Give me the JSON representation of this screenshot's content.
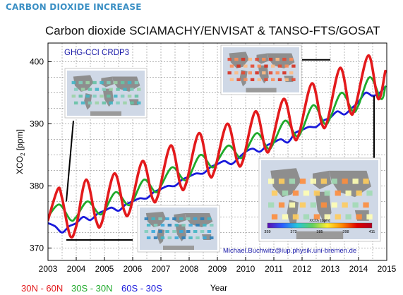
{
  "page": {
    "header": "CARBON DIOXIDE INCREASE"
  },
  "chart_data": {
    "type": "line",
    "title": "Carbon dioxide SCIAMACHY/ENVISAT & TANSO-FTS/GOSAT",
    "dataset_label": "GHG-CCI CRDP3",
    "credit": "Michael.Buchwitz@iup.physik.uni-bremen.de",
    "xlabel": "Year",
    "ylabel": "XCO₂ [ppm]",
    "ylabel_base": "XCO",
    "ylabel_sub": "2",
    "ylabel_unit": " [ppm]",
    "xlim": [
      2003,
      2015
    ],
    "ylim": [
      368,
      403
    ],
    "xticks": [
      2003,
      2004,
      2005,
      2006,
      2007,
      2008,
      2009,
      2010,
      2011,
      2012,
      2013,
      2014,
      2015
    ],
    "yticks": [
      370,
      380,
      390,
      400
    ],
    "grid": true,
    "legend_placement": "bottom",
    "series": [
      {
        "name": "30N - 60N",
        "color": "#e31a1c",
        "x": [
          2003.0,
          2003.35,
          2003.5,
          2003.78,
          2004.0,
          2004.35,
          2004.7,
          2004.9,
          2005.35,
          2005.7,
          2005.9,
          2006.35,
          2006.7,
          2006.9,
          2007.35,
          2007.7,
          2007.9,
          2008.35,
          2008.7,
          2008.9,
          2009.35,
          2009.7,
          2009.9,
          2010.35,
          2010.7,
          2010.9,
          2011.35,
          2011.7,
          2011.9,
          2012.35,
          2012.7,
          2012.9,
          2013.35,
          2013.7,
          2013.9,
          2014.35,
          2014.7,
          2014.95
        ],
        "y": [
          374.5,
          379.5,
          378.0,
          372.0,
          373.5,
          381.0,
          374.5,
          374.0,
          382.0,
          376.0,
          376.0,
          384.0,
          378.0,
          378.5,
          386.5,
          380.0,
          380.5,
          388.5,
          382.0,
          382.5,
          390.0,
          384.0,
          384.0,
          392.0,
          386.0,
          386.5,
          394.0,
          388.0,
          388.5,
          396.5,
          390.0,
          390.5,
          399.0,
          392.0,
          393.0,
          401.0,
          394.0,
          398.5
        ]
      },
      {
        "name": "30S - 30N",
        "color": "#1faa2b",
        "x": [
          2003.0,
          2003.4,
          2003.8,
          2004.0,
          2004.4,
          2004.8,
          2005.0,
          2005.4,
          2005.8,
          2006.0,
          2006.4,
          2006.8,
          2007.0,
          2007.4,
          2007.8,
          2008.0,
          2008.4,
          2008.8,
          2009.0,
          2009.4,
          2009.8,
          2010.0,
          2010.4,
          2010.8,
          2011.0,
          2011.4,
          2011.8,
          2012.0,
          2012.4,
          2012.8,
          2013.0,
          2013.4,
          2013.8,
          2014.0,
          2014.4,
          2014.8,
          2014.95
        ],
        "y": [
          375.0,
          377.0,
          374.5,
          375.0,
          377.5,
          375.5,
          376.0,
          379.0,
          377.0,
          377.5,
          381.0,
          379.0,
          380.0,
          383.0,
          381.0,
          381.5,
          385.0,
          383.0,
          384.0,
          386.5,
          384.5,
          385.5,
          388.5,
          386.0,
          387.0,
          390.5,
          388.0,
          389.0,
          393.0,
          390.0,
          391.0,
          395.0,
          392.0,
          393.0,
          397.5,
          394.0,
          396.0
        ]
      },
      {
        "name": "60S - 30S",
        "color": "#1a1adb",
        "x": [
          2003.0,
          2003.25,
          2003.5,
          2003.75,
          2004.0,
          2004.25,
          2004.5,
          2004.75,
          2005.0,
          2005.25,
          2005.5,
          2005.75,
          2006.0,
          2006.25,
          2006.5,
          2006.75,
          2007.0,
          2007.25,
          2007.5,
          2007.75,
          2008.0,
          2008.25,
          2008.5,
          2008.75,
          2009.0,
          2009.25,
          2009.5,
          2009.75,
          2010.0,
          2010.25,
          2010.5,
          2010.75,
          2011.0,
          2011.25,
          2011.5,
          2011.75,
          2012.0,
          2012.25,
          2012.5,
          2012.75,
          2013.0,
          2013.25,
          2013.5,
          2013.75,
          2014.0,
          2014.25,
          2014.5,
          2014.75,
          2014.95
        ],
        "y": [
          374.0,
          373.5,
          372.5,
          373.5,
          374.0,
          375.0,
          374.5,
          375.5,
          376.0,
          376.5,
          376.0,
          377.0,
          377.5,
          378.0,
          378.0,
          379.0,
          379.5,
          380.0,
          380.0,
          381.0,
          381.5,
          382.0,
          382.0,
          383.0,
          383.5,
          384.0,
          383.5,
          384.5,
          385.5,
          386.0,
          385.5,
          386.5,
          387.0,
          387.5,
          387.0,
          388.5,
          389.0,
          389.5,
          389.5,
          390.5,
          391.0,
          392.0,
          391.5,
          392.5,
          393.5,
          395.0,
          394.5,
          395.0,
          396.0
        ]
      }
    ],
    "inset_maps": [
      {
        "name": "map-2003",
        "palette": "low",
        "period_x": [
          2003.65,
          2006.0
        ],
        "period_y": 371.3
      },
      {
        "name": "map-2004",
        "palette": "low-mid",
        "period_x": [
          2003.65,
          2003.65
        ],
        "period_y": 382.0
      },
      {
        "name": "map-2012",
        "palette": "high",
        "period_x": [
          2012.0,
          2013.0
        ],
        "period_y": 400.3
      },
      {
        "name": "map-2014",
        "palette": "mid-high",
        "period_x": [
          2014.5,
          2014.5
        ],
        "period_y": 390.0
      }
    ],
    "colorbar": {
      "title": "XCO₂ [ppm]",
      "ticks": [
        "359",
        "372",
        "385",
        "398",
        "411"
      ]
    }
  }
}
